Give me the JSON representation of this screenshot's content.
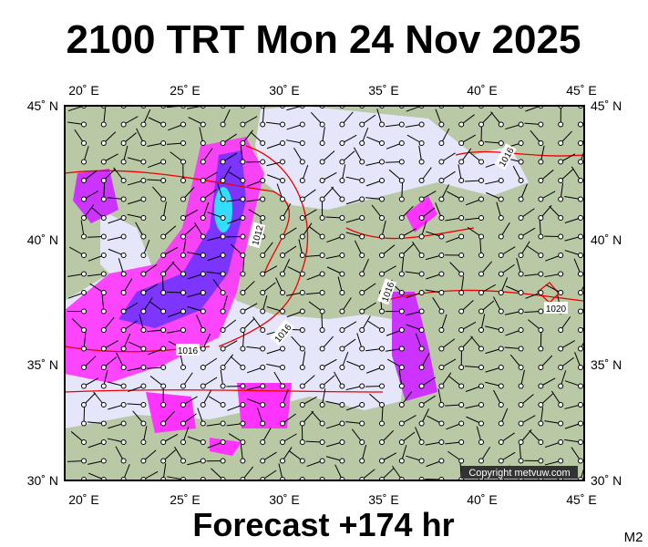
{
  "header": {
    "title": "2100 TRT Mon 24 Nov 2025"
  },
  "map": {
    "lon_labels": [
      "20˚ E",
      "25˚ E",
      "30˚ E",
      "35˚ E",
      "40˚ E",
      "45˚ E"
    ],
    "lat_labels": [
      "45˚ N",
      "40˚ N",
      "35˚ N",
      "30˚ N"
    ],
    "isobar_labels": [
      "1016",
      "1012",
      "1016",
      "1016",
      "1016",
      "1020"
    ],
    "copyright": "Copyright metvuw.com"
  },
  "footer": {
    "forecast": "Forecast +174 hr",
    "model": "M2"
  }
}
